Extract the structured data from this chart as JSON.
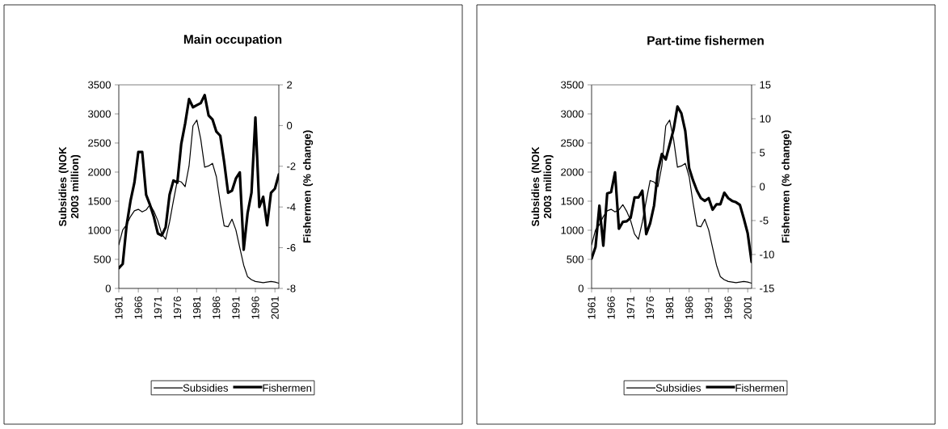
{
  "chart_data": [
    {
      "type": "line",
      "title": "Main occupation",
      "ylabel": "Subsidies (NOK 2003 million)",
      "y2label": "Fishermen (% change)",
      "x": [
        1961,
        1962,
        1963,
        1964,
        1965,
        1966,
        1967,
        1968,
        1969,
        1970,
        1971,
        1972,
        1973,
        1974,
        1975,
        1976,
        1977,
        1978,
        1979,
        1980,
        1981,
        1982,
        1983,
        1984,
        1985,
        1986,
        1987,
        1988,
        1989,
        1990,
        1991,
        1992,
        1993,
        1994,
        1995,
        1996,
        1997,
        1998,
        1999,
        2000,
        2001,
        2002
      ],
      "xlim": [
        1961,
        2002
      ],
      "xticks": [
        1961,
        1966,
        1971,
        1976,
        1981,
        1986,
        1991,
        1996,
        2001
      ],
      "ylim": [
        0,
        3500
      ],
      "yticks": [
        0,
        500,
        1000,
        1500,
        2000,
        2500,
        3000,
        3500
      ],
      "y2lim": [
        -8,
        2
      ],
      "y2ticks": [
        -8,
        -6,
        -4,
        -2,
        0,
        2
      ],
      "legend": "bottom",
      "grid": false,
      "marker": "none",
      "line_style": "solid",
      "series": [
        {
          "name": "Subsidies",
          "color": "#000000",
          "values": [
            750,
            1005,
            1095,
            1235,
            1335,
            1360,
            1315,
            1350,
            1440,
            1325,
            1165,
            935,
            845,
            1140,
            1510,
            1855,
            1830,
            1750,
            2105,
            2795,
            2895,
            2565,
            2085,
            2105,
            2150,
            1920,
            1465,
            1075,
            1060,
            1190,
            1005,
            700,
            400,
            200,
            150,
            120,
            110,
            100,
            110,
            120,
            110,
            90
          ]
        },
        {
          "name": "Fishermen",
          "color": "#000000",
          "axis": "y2",
          "values": [
            -7.0,
            -6.8,
            -4.9,
            -3.7,
            -2.8,
            -1.3,
            -1.3,
            -3.4,
            -3.9,
            -4.5,
            -5.3,
            -5.4,
            -5.0,
            -3.4,
            -2.7,
            -2.8,
            -0.9,
            0.1,
            1.3,
            0.9,
            1.0,
            1.1,
            1.5,
            0.5,
            0.3,
            -0.3,
            -0.5,
            -1.8,
            -3.3,
            -3.2,
            -2.6,
            -2.3,
            -6.1,
            -4.3,
            -3.3,
            0.4,
            -4.0,
            -3.5,
            -4.9,
            -3.3,
            -3.1,
            -2.4
          ]
        }
      ]
    },
    {
      "type": "line",
      "title": "Part-time fishermen",
      "ylabel": "Subsidies (NOK 2003 million)",
      "y2label": "Fishermen (% change)",
      "x": [
        1961,
        1962,
        1963,
        1964,
        1965,
        1966,
        1967,
        1968,
        1969,
        1970,
        1971,
        1972,
        1973,
        1974,
        1975,
        1976,
        1977,
        1978,
        1979,
        1980,
        1981,
        1982,
        1983,
        1984,
        1985,
        1986,
        1987,
        1988,
        1989,
        1990,
        1991,
        1992,
        1993,
        1994,
        1995,
        1996,
        1997,
        1998,
        1999,
        2000,
        2001,
        2002
      ],
      "xlim": [
        1961,
        2002
      ],
      "xticks": [
        1961,
        1966,
        1971,
        1976,
        1981,
        1986,
        1991,
        1996,
        2001
      ],
      "ylim": [
        0,
        3500
      ],
      "yticks": [
        0,
        500,
        1000,
        1500,
        2000,
        2500,
        3000,
        3500
      ],
      "y2lim": [
        -15,
        15
      ],
      "y2ticks": [
        -15,
        -10,
        -5,
        0,
        5,
        10,
        15
      ],
      "legend": "bottom",
      "grid": false,
      "marker": "none",
      "line_style": "solid",
      "series": [
        {
          "name": "Subsidies",
          "color": "#000000",
          "values": [
            750,
            1005,
            1095,
            1235,
            1335,
            1360,
            1315,
            1350,
            1440,
            1325,
            1165,
            935,
            845,
            1140,
            1510,
            1855,
            1830,
            1750,
            2105,
            2795,
            2895,
            2565,
            2085,
            2105,
            2150,
            1920,
            1465,
            1075,
            1060,
            1190,
            1005,
            700,
            400,
            200,
            150,
            120,
            110,
            100,
            110,
            120,
            110,
            90
          ]
        },
        {
          "name": "Fishermen",
          "color": "#000000",
          "axis": "y2",
          "values": [
            -10.6,
            -8.9,
            -2.8,
            -8.7,
            -1.0,
            -0.8,
            2.1,
            -6.2,
            -5.2,
            -5.1,
            -4.6,
            -1.6,
            -1.6,
            -0.6,
            -7.0,
            -5.4,
            -2.8,
            2.3,
            4.8,
            4.0,
            6.2,
            8.4,
            11.8,
            10.8,
            8.2,
            2.7,
            0.9,
            -0.6,
            -1.7,
            -2.1,
            -1.7,
            -3.4,
            -2.6,
            -2.6,
            -0.9,
            -1.7,
            -2.1,
            -2.3,
            -2.7,
            -4.7,
            -6.9,
            -11.1
          ]
        }
      ]
    }
  ]
}
